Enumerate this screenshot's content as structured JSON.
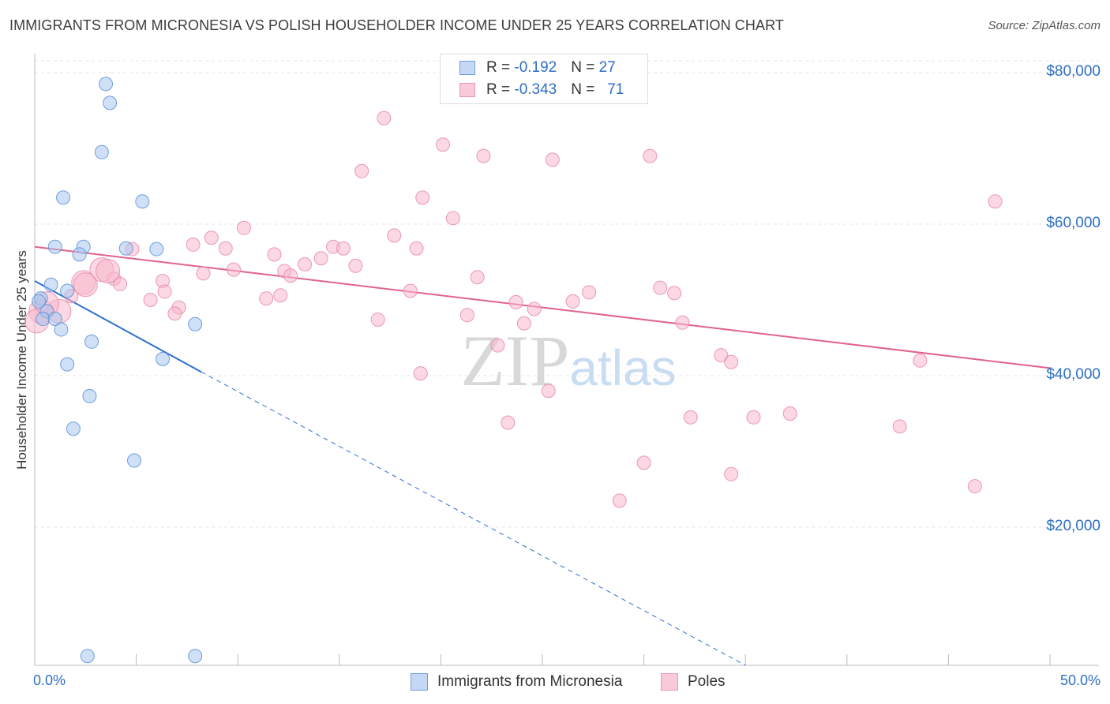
{
  "chart_data": {
    "type": "scatter",
    "title": "IMMIGRANTS FROM MICRONESIA VS POLISH HOUSEHOLDER INCOME UNDER 25 YEARS CORRELATION CHART",
    "source": "Source: ZipAtlas.com",
    "xlabel": "",
    "ylabel": "Householder Income Under 25 years",
    "xlim": [
      0,
      50
    ],
    "ylim": [
      0,
      80000
    ],
    "x_tick_labels": [
      "0.0%",
      "50.0%"
    ],
    "y_ticks": [
      20000,
      40000,
      60000,
      80000
    ],
    "y_tick_labels": [
      "$20,000",
      "$40,000",
      "$60,000",
      "$80,000"
    ],
    "grid": true,
    "watermark": "ZIPatlas",
    "series": [
      {
        "name": "Immigrants from Micronesia",
        "color": "#a9c6f0",
        "stroke": "#5b8fd6",
        "line_color": "#2f6fd0",
        "R": "-0.192",
        "N": "27",
        "trend": {
          "x0": 0.0,
          "y0": 52500,
          "x1": 8.2,
          "y1": 40500,
          "x_dash_end": 35.0,
          "y_dash_end": 1000
        },
        "points": [
          {
            "x": 3.5,
            "y": 78500
          },
          {
            "x": 3.7,
            "y": 76000
          },
          {
            "x": 3.3,
            "y": 69500
          },
          {
            "x": 1.4,
            "y": 63500
          },
          {
            "x": 5.3,
            "y": 63000
          },
          {
            "x": 1.0,
            "y": 57000
          },
          {
            "x": 2.4,
            "y": 57000
          },
          {
            "x": 4.5,
            "y": 56800
          },
          {
            "x": 6.0,
            "y": 56700
          },
          {
            "x": 2.2,
            "y": 56000
          },
          {
            "x": 0.8,
            "y": 52000
          },
          {
            "x": 1.6,
            "y": 51200
          },
          {
            "x": 0.3,
            "y": 50200
          },
          {
            "x": 0.6,
            "y": 48500
          },
          {
            "x": 0.4,
            "y": 47500
          },
          {
            "x": 1.0,
            "y": 47500
          },
          {
            "x": 7.9,
            "y": 46800
          },
          {
            "x": 1.3,
            "y": 46100
          },
          {
            "x": 2.8,
            "y": 44500
          },
          {
            "x": 6.3,
            "y": 42200
          },
          {
            "x": 1.6,
            "y": 41500
          },
          {
            "x": 2.7,
            "y": 37300
          },
          {
            "x": 1.9,
            "y": 33000
          },
          {
            "x": 4.9,
            "y": 28800
          },
          {
            "x": 2.6,
            "y": 3000
          },
          {
            "x": 7.9,
            "y": 3000
          },
          {
            "x": 0.2,
            "y": 49800
          }
        ]
      },
      {
        "name": "Poles",
        "color": "#f7b8cc",
        "stroke": "#e68aa8",
        "line_color": "#e2628d",
        "R": "-0.343",
        "N": "71",
        "trend": {
          "x0": 0.0,
          "y0": 57000,
          "x1": 50.0,
          "y1": 41000
        },
        "points": [
          {
            "x": 17.2,
            "y": 74000
          },
          {
            "x": 20.1,
            "y": 70500
          },
          {
            "x": 22.1,
            "y": 69000
          },
          {
            "x": 25.5,
            "y": 68500
          },
          {
            "x": 30.3,
            "y": 69000
          },
          {
            "x": 16.1,
            "y": 67000
          },
          {
            "x": 19.1,
            "y": 63500
          },
          {
            "x": 47.3,
            "y": 63000
          },
          {
            "x": 20.6,
            "y": 60800
          },
          {
            "x": 10.3,
            "y": 59500
          },
          {
            "x": 17.7,
            "y": 58500
          },
          {
            "x": 8.7,
            "y": 58200
          },
          {
            "x": 7.8,
            "y": 57300
          },
          {
            "x": 9.4,
            "y": 56800
          },
          {
            "x": 14.7,
            "y": 57000
          },
          {
            "x": 15.2,
            "y": 56800
          },
          {
            "x": 18.8,
            "y": 56800
          },
          {
            "x": 4.8,
            "y": 56700
          },
          {
            "x": 11.8,
            "y": 56000
          },
          {
            "x": 14.1,
            "y": 55500
          },
          {
            "x": 13.3,
            "y": 54700
          },
          {
            "x": 15.8,
            "y": 54500
          },
          {
            "x": 3.3,
            "y": 54000
          },
          {
            "x": 9.8,
            "y": 54000
          },
          {
            "x": 12.3,
            "y": 53800
          },
          {
            "x": 8.3,
            "y": 53500
          },
          {
            "x": 12.6,
            "y": 53200
          },
          {
            "x": 21.8,
            "y": 53000
          },
          {
            "x": 3.9,
            "y": 52800
          },
          {
            "x": 6.3,
            "y": 52500
          },
          {
            "x": 2.4,
            "y": 52300
          },
          {
            "x": 4.2,
            "y": 52100
          },
          {
            "x": 30.8,
            "y": 51600
          },
          {
            "x": 6.4,
            "y": 51100
          },
          {
            "x": 18.5,
            "y": 51200
          },
          {
            "x": 27.3,
            "y": 51000
          },
          {
            "x": 31.5,
            "y": 50900
          },
          {
            "x": 12.1,
            "y": 50600
          },
          {
            "x": 5.7,
            "y": 50000
          },
          {
            "x": 26.5,
            "y": 49800
          },
          {
            "x": 23.7,
            "y": 49700
          },
          {
            "x": 11.4,
            "y": 50200
          },
          {
            "x": 7.1,
            "y": 49000
          },
          {
            "x": 24.6,
            "y": 48800
          },
          {
            "x": 1.8,
            "y": 50500
          },
          {
            "x": 6.9,
            "y": 48200
          },
          {
            "x": 21.3,
            "y": 48000
          },
          {
            "x": 0.3,
            "y": 48500
          },
          {
            "x": 0.1,
            "y": 47200
          },
          {
            "x": 16.9,
            "y": 47400
          },
          {
            "x": 24.1,
            "y": 46900
          },
          {
            "x": 31.9,
            "y": 47000
          },
          {
            "x": 22.8,
            "y": 44000
          },
          {
            "x": 33.8,
            "y": 42700
          },
          {
            "x": 34.3,
            "y": 41800
          },
          {
            "x": 43.6,
            "y": 42000
          },
          {
            "x": 19.0,
            "y": 40300
          },
          {
            "x": 25.3,
            "y": 38000
          },
          {
            "x": 23.3,
            "y": 33800
          },
          {
            "x": 32.3,
            "y": 34500
          },
          {
            "x": 35.4,
            "y": 34500
          },
          {
            "x": 37.2,
            "y": 35000
          },
          {
            "x": 42.6,
            "y": 33300
          },
          {
            "x": 30.0,
            "y": 28500
          },
          {
            "x": 34.3,
            "y": 27000
          },
          {
            "x": 46.3,
            "y": 25400
          },
          {
            "x": 28.8,
            "y": 23500
          },
          {
            "x": 1.2,
            "y": 48500
          },
          {
            "x": 2.5,
            "y": 52000
          },
          {
            "x": 0.6,
            "y": 49500
          },
          {
            "x": 3.6,
            "y": 53800
          }
        ]
      }
    ]
  }
}
